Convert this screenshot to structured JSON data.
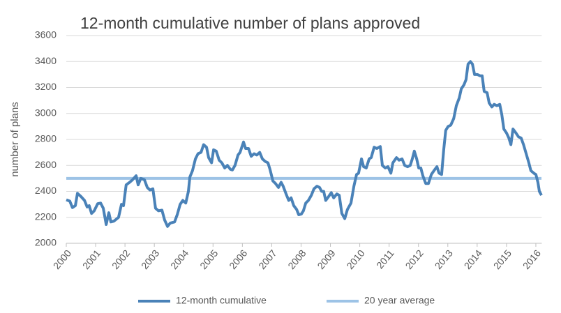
{
  "chart_data": {
    "type": "line",
    "title": "12-month cumulative number of plans approved",
    "y_label": "number of plans",
    "xlim": [
      2000,
      2016.2
    ],
    "xticks": [
      2000,
      2001,
      2002,
      2003,
      2004,
      2005,
      2006,
      2007,
      2008,
      2009,
      2010,
      2011,
      2012,
      2013,
      2014,
      2015,
      2016
    ],
    "ylim": [
      2000,
      3600
    ],
    "yticks": [
      2000,
      2200,
      2400,
      2600,
      2800,
      3000,
      3200,
      3400,
      3600
    ],
    "grid": true,
    "legend": "bottom",
    "series": [
      {
        "name": "12-month cumulative",
        "color": "#4a82b8",
        "x": [
          2000,
          2000.12,
          2000.21,
          2000.31,
          2000.38,
          2000.5,
          2000.62,
          2000.71,
          2000.78,
          2000.86,
          2000.95,
          2001.07,
          2001.17,
          2001.26,
          2001.36,
          2001.45,
          2001.52,
          2001.62,
          2001.78,
          2001.88,
          2001.95,
          2002.04,
          2002.16,
          2002.26,
          2002.38,
          2002.45,
          2002.54,
          2002.66,
          2002.76,
          2002.85,
          2002.95,
          2003.04,
          2003.14,
          2003.26,
          2003.35,
          2003.45,
          2003.54,
          2003.69,
          2003.78,
          2003.88,
          2003.97,
          2004.07,
          2004.16,
          2004.21,
          2004.3,
          2004.4,
          2004.49,
          2004.59,
          2004.68,
          2004.78,
          2004.85,
          2004.95,
          2005.02,
          2005.11,
          2005.21,
          2005.3,
          2005.4,
          2005.49,
          2005.59,
          2005.66,
          2005.75,
          2005.85,
          2005.92,
          2006.04,
          2006.11,
          2006.21,
          2006.3,
          2006.4,
          2006.49,
          2006.59,
          2006.68,
          2006.78,
          2006.87,
          2006.94,
          2007.04,
          2007.13,
          2007.23,
          2007.32,
          2007.39,
          2007.49,
          2007.58,
          2007.66,
          2007.75,
          2007.85,
          2007.92,
          2008.01,
          2008.08,
          2008.16,
          2008.25,
          2008.35,
          2008.44,
          2008.54,
          2008.63,
          2008.7,
          2008.77,
          2008.84,
          2008.94,
          2009.03,
          2009.11,
          2009.22,
          2009.3,
          2009.39,
          2009.49,
          2009.58,
          2009.7,
          2009.8,
          2009.89,
          2009.96,
          2010.06,
          2010.13,
          2010.22,
          2010.32,
          2010.39,
          2010.49,
          2010.58,
          2010.7,
          2010.77,
          2010.87,
          2010.96,
          2011.06,
          2011.13,
          2011.25,
          2011.34,
          2011.44,
          2011.53,
          2011.63,
          2011.72,
          2011.79,
          2011.86,
          2011.94,
          2012.01,
          2012.08,
          2012.15,
          2012.25,
          2012.34,
          2012.44,
          2012.53,
          2012.63,
          2012.7,
          2012.79,
          2012.86,
          2012.93,
          2013.01,
          2013.1,
          2013.2,
          2013.29,
          2013.39,
          2013.46,
          2013.55,
          2013.62,
          2013.69,
          2013.77,
          2013.84,
          2013.91,
          2014.01,
          2014.1,
          2014.17,
          2014.24,
          2014.34,
          2014.41,
          2014.5,
          2014.58,
          2014.67,
          2014.77,
          2014.84,
          2014.91,
          2015,
          2015.08,
          2015.15,
          2015.22,
          2015.32,
          2015.41,
          2015.5,
          2015.58,
          2015.67,
          2015.76,
          2015.83,
          2015.93,
          2016,
          2016.07,
          2016.12,
          2016.19
        ],
        "values": [
          2335,
          2325,
          2275,
          2290,
          2385,
          2360,
          2330,
          2280,
          2290,
          2230,
          2250,
          2305,
          2310,
          2270,
          2145,
          2235,
          2165,
          2170,
          2200,
          2300,
          2290,
          2450,
          2470,
          2490,
          2520,
          2450,
          2500,
          2490,
          2430,
          2410,
          2420,
          2270,
          2250,
          2255,
          2180,
          2130,
          2155,
          2165,
          2220,
          2300,
          2330,
          2310,
          2400,
          2510,
          2560,
          2650,
          2690,
          2700,
          2760,
          2740,
          2660,
          2620,
          2720,
          2710,
          2640,
          2620,
          2580,
          2600,
          2570,
          2565,
          2600,
          2680,
          2700,
          2780,
          2730,
          2730,
          2670,
          2690,
          2680,
          2700,
          2650,
          2630,
          2620,
          2570,
          2480,
          2460,
          2430,
          2470,
          2440,
          2380,
          2330,
          2350,
          2290,
          2260,
          2220,
          2225,
          2250,
          2310,
          2330,
          2370,
          2420,
          2440,
          2430,
          2400,
          2400,
          2330,
          2360,
          2390,
          2350,
          2380,
          2370,
          2230,
          2190,
          2260,
          2310,
          2440,
          2530,
          2540,
          2650,
          2590,
          2580,
          2650,
          2660,
          2740,
          2730,
          2745,
          2600,
          2580,
          2590,
          2540,
          2620,
          2660,
          2640,
          2650,
          2600,
          2590,
          2600,
          2650,
          2710,
          2650,
          2580,
          2580,
          2520,
          2460,
          2460,
          2530,
          2560,
          2590,
          2540,
          2530,
          2720,
          2870,
          2900,
          2910,
          2960,
          3060,
          3120,
          3190,
          3220,
          3260,
          3380,
          3400,
          3380,
          3300,
          3300,
          3290,
          3290,
          3170,
          3160,
          3080,
          3050,
          3070,
          3060,
          3070,
          2990,
          2880,
          2850,
          2810,
          2760,
          2880,
          2850,
          2820,
          2810,
          2760,
          2690,
          2620,
          2560,
          2540,
          2530,
          2470,
          2400,
          2370
        ]
      },
      {
        "name": "20 year average",
        "color": "#9dc3e6",
        "x": [
          2000,
          2016.19
        ],
        "values": [
          2500,
          2500
        ]
      }
    ]
  }
}
